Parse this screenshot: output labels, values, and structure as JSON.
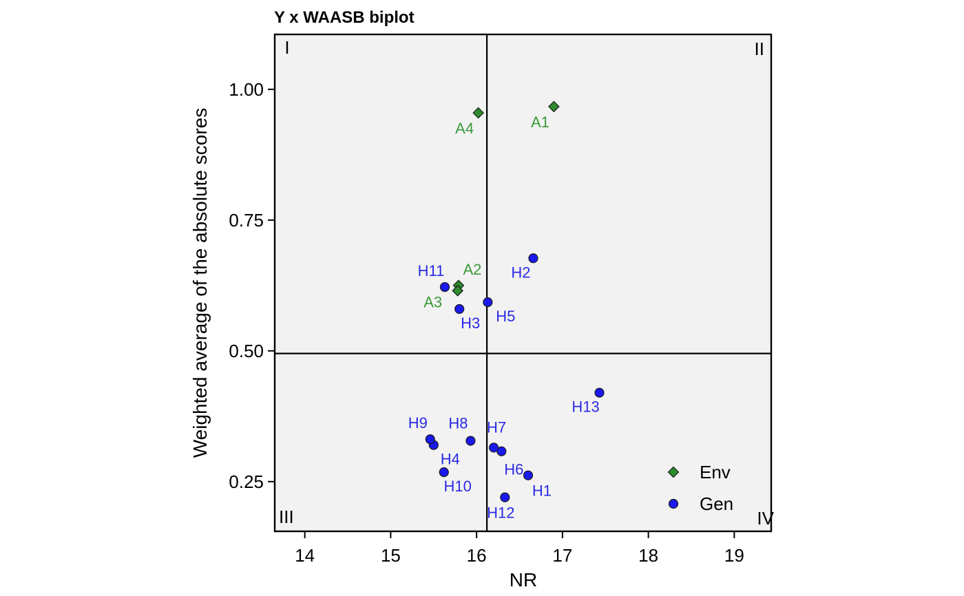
{
  "chart_data": {
    "type": "scatter",
    "title": "Y x WAASB biplot",
    "xlabel": "NR",
    "ylabel": "Weighted average of the absolute scores",
    "xlim": [
      13.65,
      19.43
    ],
    "ylim": [
      0.155,
      1.105
    ],
    "xticks": [
      14,
      15,
      16,
      17,
      18,
      19
    ],
    "yticks": [
      0.25,
      0.5,
      0.75,
      1.0
    ],
    "ytick_labels": [
      "0.25",
      "0.50",
      "0.75",
      "1.00"
    ],
    "vline_x": 16.12,
    "hline_y": 0.495,
    "grid": false,
    "background": "#f2f2f2",
    "quadrant_labels": [
      "I",
      "II",
      "III",
      "IV"
    ],
    "legend": {
      "position": "bottom-right",
      "entries": [
        {
          "name": "Env",
          "marker": "diamond",
          "color": "#2e8b2e"
        },
        {
          "name": "Gen",
          "marker": "circle",
          "color": "#1a1aee"
        }
      ]
    },
    "series": [
      {
        "name": "Env",
        "color": "#2e8b2e",
        "label_color": "#3a9a3a",
        "marker": "diamond",
        "points": [
          {
            "label": "A1",
            "x": 16.9,
            "y": 0.967,
            "dx": -20,
            "dy": 30
          },
          {
            "label": "A2",
            "x": 15.79,
            "y": 0.625,
            "dx": 20,
            "dy": -16
          },
          {
            "label": "A3",
            "x": 15.78,
            "y": 0.615,
            "dx": -36,
            "dy": 24
          },
          {
            "label": "A4",
            "x": 16.02,
            "y": 0.955,
            "dx": -20,
            "dy": 30
          }
        ]
      },
      {
        "name": "Gen",
        "color": "#1a1aee",
        "label_color": "#2a2ae6",
        "marker": "circle",
        "points": [
          {
            "label": "H1",
            "x": 16.6,
            "y": 0.262,
            "dx": 20,
            "dy": 30
          },
          {
            "label": "H2",
            "x": 16.66,
            "y": 0.677,
            "dx": -18,
            "dy": 28
          },
          {
            "label": "H3",
            "x": 15.8,
            "y": 0.58,
            "dx": 16,
            "dy": 28
          },
          {
            "label": "H4",
            "x": 15.5,
            "y": 0.32,
            "dx": 24,
            "dy": 28
          },
          {
            "label": "H5",
            "x": 16.13,
            "y": 0.593,
            "dx": 26,
            "dy": 28
          },
          {
            "label": "H6",
            "x": 16.29,
            "y": 0.308,
            "dx": 18,
            "dy": 34
          },
          {
            "label": "H7",
            "x": 16.2,
            "y": 0.315,
            "dx": 4,
            "dy": -22
          },
          {
            "label": "H8",
            "x": 15.93,
            "y": 0.328,
            "dx": -18,
            "dy": -18
          },
          {
            "label": "H9",
            "x": 15.46,
            "y": 0.331,
            "dx": -18,
            "dy": -16
          },
          {
            "label": "H10",
            "x": 15.62,
            "y": 0.268,
            "dx": 20,
            "dy": 28
          },
          {
            "label": "H11",
            "x": 15.63,
            "y": 0.622,
            "dx": -20,
            "dy": -16
          },
          {
            "label": "H12",
            "x": 16.33,
            "y": 0.22,
            "dx": -6,
            "dy": 30
          },
          {
            "label": "H13",
            "x": 17.43,
            "y": 0.42,
            "dx": -20,
            "dy": 28
          }
        ]
      }
    ]
  }
}
